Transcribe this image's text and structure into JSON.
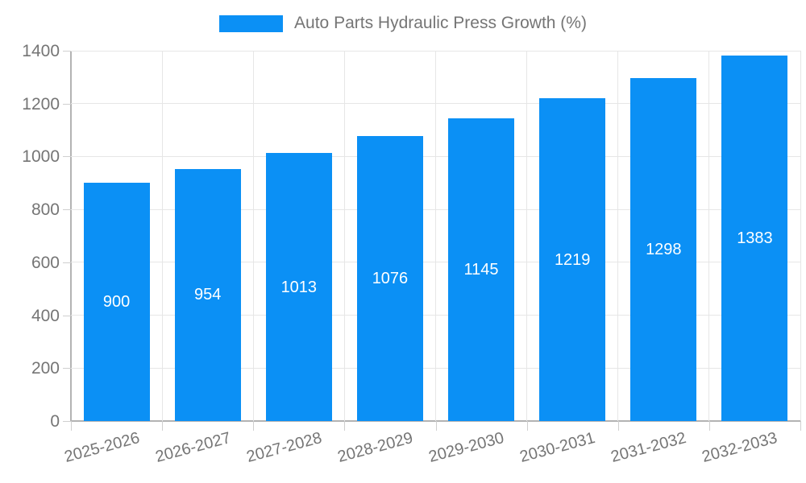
{
  "legend": {
    "label": "Auto Parts Hydraulic Press Growth (%)"
  },
  "chart_data": {
    "type": "bar",
    "title": "Auto Parts Hydraulic Press Growth (%)",
    "categories": [
      "2025-2026",
      "2026-2027",
      "2027-2028",
      "2028-2029",
      "2029-2030",
      "2030-2031",
      "2031-2032",
      "2032-2033"
    ],
    "values": [
      900,
      954,
      1013,
      1076,
      1145,
      1219,
      1298,
      1383
    ],
    "value_labels": [
      "900",
      "954",
      "1013",
      "1076",
      "1145",
      "1219",
      "1298",
      "1383"
    ],
    "xlabel": "",
    "ylabel": "",
    "ylim": [
      0,
      1400
    ],
    "yticks": [
      0,
      200,
      400,
      600,
      800,
      1000,
      1200,
      1400
    ],
    "ytick_labels": [
      "0",
      "200",
      "400",
      "600",
      "800",
      "1000",
      "1200",
      "1400"
    ],
    "grid": true,
    "legend_position": "top-center",
    "value_label_position": "bar-center"
  },
  "colors": {
    "bar": "#0b90f5",
    "value_label": "#ffffff",
    "axis_text": "#757575",
    "grid_line": "#e6e6e6",
    "axis_line": "#b3b3b3",
    "tick": "#cfcfcf",
    "background": "#ffffff"
  }
}
